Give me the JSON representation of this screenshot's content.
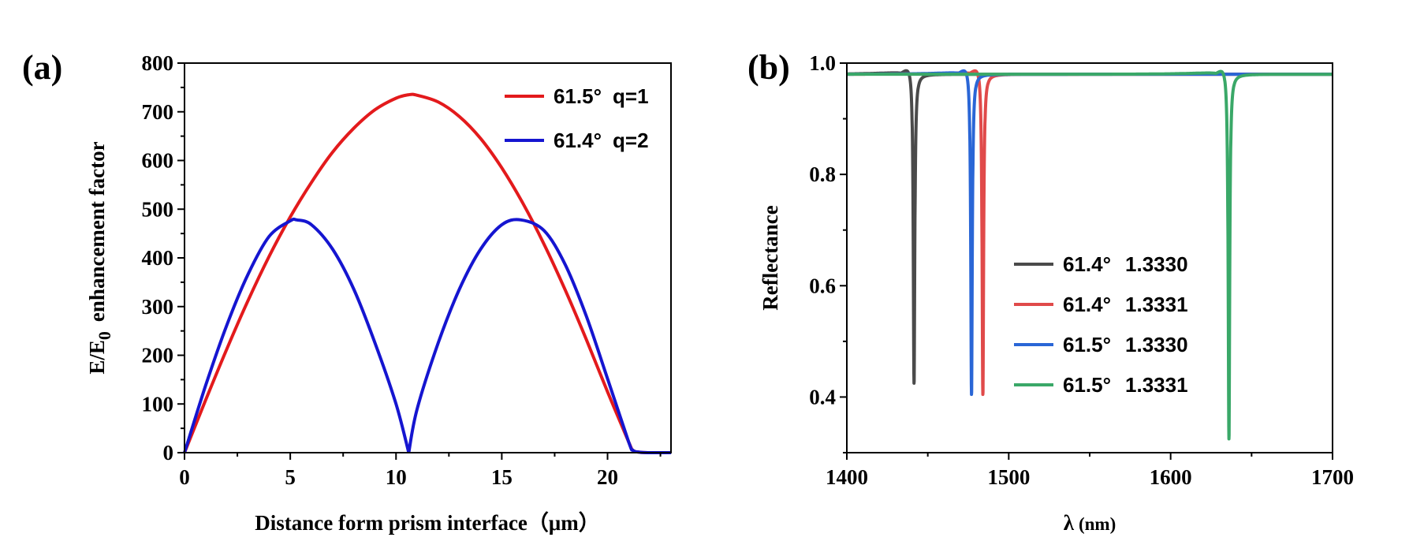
{
  "chart_data": [
    {
      "panel_label": "(a)",
      "type": "line",
      "xlabel": "Distance form prism interface（μm）",
      "ylabel": "E/E0 enhancement factor",
      "ylabel_main": "E/E",
      "ylabel_sub": "0",
      "ylabel_rest": "enhancement factor",
      "xlim": [
        0,
        23
      ],
      "ylim": [
        0,
        800
      ],
      "xticks": [
        "0",
        "5",
        "10",
        "15",
        "20"
      ],
      "xtick_values": [
        0,
        5,
        10,
        15,
        20
      ],
      "yticks": [
        "0",
        "100",
        "200",
        "300",
        "400",
        "500",
        "600",
        "700",
        "800"
      ],
      "ytick_values": [
        0,
        100,
        200,
        300,
        400,
        500,
        600,
        700,
        800
      ],
      "legend_position": "top-right",
      "series": [
        {
          "name": "61.5° q=1",
          "angle": "61.5°",
          "mode": "q=1",
          "color": "#e31a1c",
          "x": [
            0,
            1,
            2,
            3,
            4,
            5,
            6,
            7,
            8,
            9,
            10,
            10.6,
            11,
            12,
            13,
            14,
            15,
            16,
            17,
            18,
            19,
            20,
            21,
            21.2,
            21.5,
            22,
            22.5,
            23
          ],
          "y": [
            0,
            108,
            213,
            312,
            403,
            484,
            555,
            617,
            666,
            704,
            728,
            735,
            734,
            720,
            690,
            645,
            585,
            512,
            428,
            334,
            232,
            125,
            22,
            5,
            1,
            0,
            0,
            0
          ]
        },
        {
          "name": "61.4° q=2",
          "angle": "61.4°",
          "mode": "q=2",
          "color": "#1515d0",
          "x": [
            0,
            1,
            2,
            3,
            4,
            5,
            5.3,
            6,
            7,
            8,
            9,
            10,
            10.6,
            11,
            12,
            13,
            14,
            15,
            15.9,
            17,
            18,
            19,
            20,
            21,
            21.2,
            21.5,
            22,
            22.5,
            23
          ],
          "y": [
            0,
            138,
            262,
            366,
            444,
            476,
            478,
            468,
            418,
            336,
            226,
            100,
            0,
            90,
            226,
            336,
            418,
            468,
            478,
            456,
            386,
            280,
            152,
            22,
            5,
            1,
            0,
            0,
            0
          ]
        }
      ]
    },
    {
      "panel_label": "(b)",
      "type": "line",
      "xlabel": "λ (nm)",
      "xlabel_symbol": "λ",
      "xlabel_unit": "(nm)",
      "ylabel": "Reflectance",
      "xlim": [
        1400,
        1700
      ],
      "ylim": [
        0.3,
        1.0
      ],
      "xticks": [
        "1400",
        "1500",
        "1600",
        "1700"
      ],
      "xtick_values": [
        1400,
        1500,
        1600,
        1700
      ],
      "yticks": [
        "0.4",
        "0.6",
        "0.8",
        "1.0"
      ],
      "ytick_values": [
        0.4,
        0.6,
        0.8,
        1.0
      ],
      "legend_position": "center-right",
      "series": [
        {
          "name": "61.4° 1.3330",
          "angle": "61.4°",
          "index": "1.3330",
          "color": "#4a4a4a",
          "baseline": 0.98,
          "dip_center": 1441.5,
          "dip_min": 0.41,
          "dip_width": 0.55,
          "peak_offset": -2.2,
          "peak_value": 0.998
        },
        {
          "name": "61.4° 1.3331",
          "angle": "61.4°",
          "index": "1.3331",
          "color": "#e04a4a",
          "baseline": 0.98,
          "dip_center": 1484,
          "dip_min": 0.39,
          "dip_width": 0.55,
          "peak_offset": -2.2,
          "peak_value": 0.998
        },
        {
          "name": "61.5° 1.3330",
          "angle": "61.5°",
          "index": "1.3330",
          "color": "#2a66d6",
          "baseline": 0.98,
          "dip_center": 1477,
          "dip_min": 0.39,
          "dip_width": 0.55,
          "peak_offset": -2.2,
          "peak_value": 0.998
        },
        {
          "name": "61.5° 1.3331",
          "angle": "61.5°",
          "index": "1.3331",
          "color": "#3aa868",
          "baseline": 0.98,
          "dip_center": 1636,
          "dip_min": 0.31,
          "dip_width": 0.55,
          "peak_offset": -2.2,
          "peak_value": 0.998
        }
      ]
    }
  ]
}
